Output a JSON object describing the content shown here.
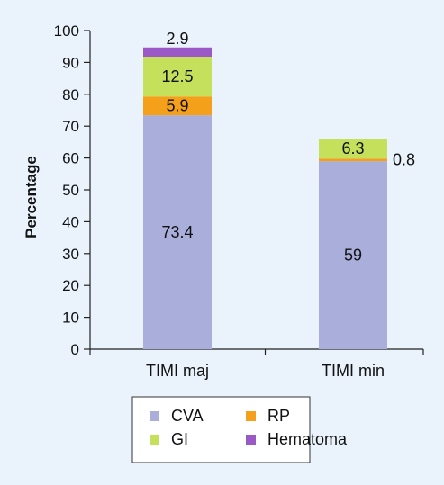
{
  "chart_data": {
    "type": "bar",
    "stacked": true,
    "categories": [
      "TIMI maj",
      "TIMI min"
    ],
    "ylabel": "Percentage",
    "ylim": [
      0,
      100
    ],
    "yticks": [
      0,
      10,
      20,
      30,
      40,
      50,
      60,
      70,
      80,
      90,
      100
    ],
    "grid": false,
    "legend_position": "bottom-center",
    "series": [
      {
        "name": "CVA",
        "color": "#a9aedb",
        "values": [
          73.4,
          59
        ]
      },
      {
        "name": "RP",
        "color": "#f5a01a",
        "values": [
          5.9,
          0.8
        ]
      },
      {
        "name": "GI",
        "color": "#c5e05b",
        "values": [
          12.5,
          6.3
        ]
      },
      {
        "name": "Hematoma",
        "color": "#9b59c7",
        "values": [
          2.9,
          0
        ]
      }
    ],
    "data_labels": [
      {
        "series": "CVA",
        "category": "TIMI maj",
        "text": "73.4"
      },
      {
        "series": "RP",
        "category": "TIMI maj",
        "text": "5.9"
      },
      {
        "series": "GI",
        "category": "TIMI maj",
        "text": "12.5"
      },
      {
        "series": "Hematoma",
        "category": "TIMI maj",
        "text": "2.9"
      },
      {
        "series": "CVA",
        "category": "TIMI min",
        "text": "59"
      },
      {
        "series": "RP",
        "category": "TIMI min",
        "text": "0.8"
      },
      {
        "series": "GI",
        "category": "TIMI min",
        "text": "6.3"
      }
    ],
    "legend": [
      "CVA",
      "RP",
      "GI",
      "Hematoma"
    ]
  }
}
